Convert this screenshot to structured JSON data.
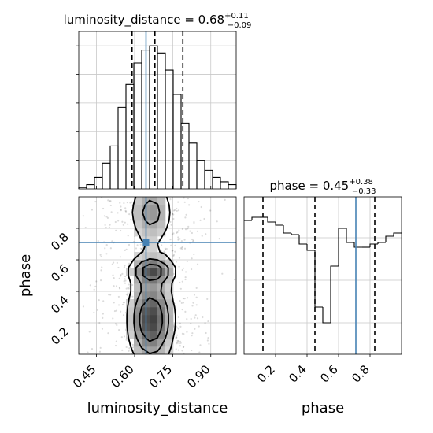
{
  "chart_data": [
    {
      "type": "histogram",
      "panel": "luminosity_distance-marginal",
      "parameter": "luminosity_distance",
      "title_base": "luminosity_distance = 0.68",
      "title_plus": "+0.11",
      "title_minus": "−0.09",
      "xlim": [
        0.38,
        1.0
      ],
      "bins": {
        "start": 0.38,
        "width": 0.031,
        "heights": [
          0.01,
          0.03,
          0.08,
          0.18,
          0.3,
          0.57,
          0.73,
          0.88,
          0.97,
          1.0,
          0.95,
          0.83,
          0.66,
          0.46,
          0.32,
          0.2,
          0.13,
          0.08,
          0.05,
          0.03
        ]
      },
      "quantiles": [
        0.59,
        0.68,
        0.79
      ],
      "truth": 0.645,
      "grid": true
    },
    {
      "type": "scatter-contour",
      "panel": "luminosity_distance-phase-2d",
      "x_parameter": "luminosity_distance",
      "y_parameter": "phase",
      "xlim": [
        0.38,
        1.0
      ],
      "ylim": [
        0.0,
        1.0
      ],
      "xticks": [
        0.45,
        0.6,
        0.75,
        0.9
      ],
      "xtick_labels": [
        "0.45",
        "0.60",
        "0.75",
        "0.90"
      ],
      "yticks": [
        0.2,
        0.4,
        0.6,
        0.8
      ],
      "ytick_labels": [
        "0.2",
        "0.4",
        "0.6",
        "0.8"
      ],
      "xlabel": "luminosity_distance",
      "ylabel": "phase",
      "truth": {
        "x": 0.645,
        "y": 0.71
      },
      "modes": [
        {
          "x": 0.66,
          "y": 0.22
        },
        {
          "x": 0.67,
          "y": 0.53
        },
        {
          "x": 0.66,
          "y": 0.9
        }
      ],
      "grid": true
    },
    {
      "type": "histogram",
      "panel": "phase-marginal",
      "parameter": "phase",
      "title_base": "phase = 0.45",
      "title_plus": "+0.38",
      "title_minus": "−0.33",
      "xlim": [
        0.0,
        1.0
      ],
      "xticks": [
        0.2,
        0.4,
        0.6,
        0.8
      ],
      "xtick_labels": [
        "0.2",
        "0.4",
        "0.6",
        "0.8"
      ],
      "xlabel": "phase",
      "bins": {
        "start": 0.0,
        "width": 0.05,
        "heights": [
          0.85,
          0.87,
          0.87,
          0.84,
          0.82,
          0.77,
          0.76,
          0.7,
          0.66,
          0.3,
          0.2,
          0.56,
          0.8,
          0.71,
          0.68,
          0.68,
          0.7,
          0.71,
          0.75,
          0.77
        ]
      },
      "quantiles": [
        0.12,
        0.45,
        0.83
      ],
      "truth": 0.71,
      "grid": true
    }
  ]
}
